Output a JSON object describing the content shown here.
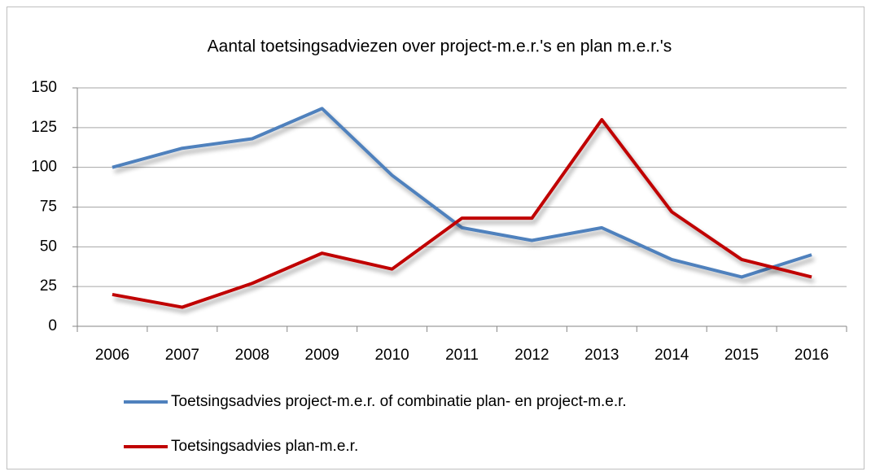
{
  "chart_data": {
    "type": "line",
    "title": "Aantal toetsingsadviezen over project-m.e.r.'s en plan m.e.r.'s",
    "categories": [
      "2006",
      "2007",
      "2008",
      "2009",
      "2010",
      "2011",
      "2012",
      "2013",
      "2014",
      "2015",
      "2016"
    ],
    "series": [
      {
        "name": "Toetsingsadvies project-m.e.r. of combinatie plan- en project-m.e.r.",
        "color": "#4f81bd",
        "values": [
          100,
          112,
          118,
          137,
          95,
          62,
          54,
          62,
          42,
          31,
          45
        ]
      },
      {
        "name": "Toetsingsadvies plan-m.e.r.",
        "color": "#c00000",
        "values": [
          20,
          12,
          27,
          46,
          36,
          68,
          68,
          130,
          72,
          42,
          31
        ]
      }
    ],
    "ylim": [
      0,
      150
    ],
    "yticks": [
      0,
      25,
      50,
      75,
      100,
      125,
      150
    ],
    "grid": true,
    "legend": "bottom"
  }
}
